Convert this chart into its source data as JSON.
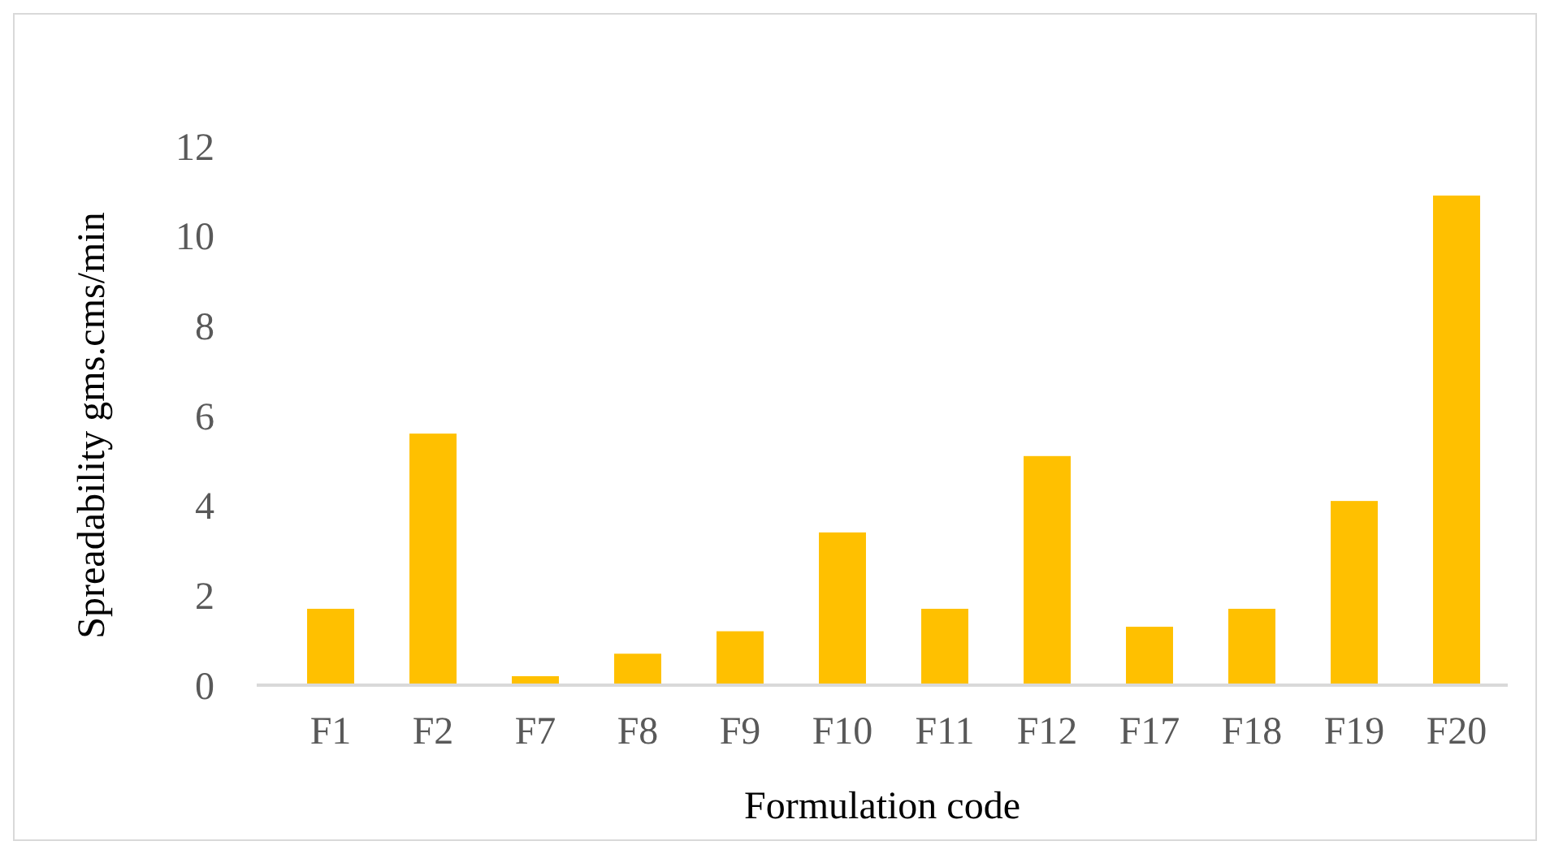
{
  "chart_data": {
    "type": "bar",
    "xlabel": "Formulation code",
    "ylabel": "Spreadability gms.cms/min",
    "categories": [
      "F1",
      "F2",
      "F7",
      "F8",
      "F9",
      "F10",
      "F11",
      "F12",
      "F17",
      "F18",
      "F19",
      "F20"
    ],
    "values": [
      1.7,
      5.6,
      0.2,
      0.7,
      1.2,
      3.4,
      1.7,
      5.1,
      1.3,
      1.7,
      4.1,
      10.9
    ],
    "color": "#ffc000",
    "ylim": [
      0,
      12
    ],
    "yticks": [
      0,
      2,
      4,
      6,
      8,
      10,
      12
    ],
    "grid": false
  }
}
